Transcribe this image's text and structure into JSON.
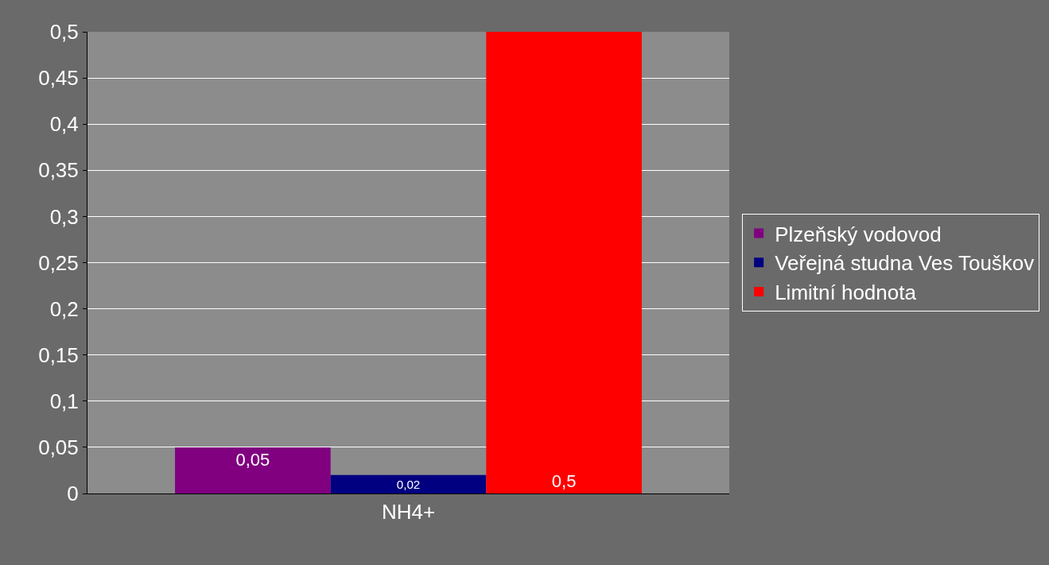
{
  "chart_data": {
    "type": "bar",
    "categories": [
      "NH4+"
    ],
    "series": [
      {
        "name": "Plzeňský vodovod",
        "color": "#800080",
        "values": [
          0.05
        ],
        "value_labels": [
          "0,05"
        ]
      },
      {
        "name": "Veřejná studna Ves Touškov",
        "color": "#000080",
        "values": [
          0.02
        ],
        "value_labels": [
          "0,02"
        ]
      },
      {
        "name": "Limitní hodnota",
        "color": "#ff0000",
        "values": [
          0.5
        ],
        "value_labels": [
          "0,5"
        ]
      }
    ],
    "ylim": [
      0,
      0.5
    ],
    "yticks": [
      {
        "value": 0,
        "label": "0"
      },
      {
        "value": 0.05,
        "label": "0,05"
      },
      {
        "value": 0.1,
        "label": "0,1"
      },
      {
        "value": 0.15,
        "label": "0,15"
      },
      {
        "value": 0.2,
        "label": "0,2"
      },
      {
        "value": 0.25,
        "label": "0,25"
      },
      {
        "value": 0.3,
        "label": "0,3"
      },
      {
        "value": 0.35,
        "label": "0,35"
      },
      {
        "value": 0.4,
        "label": "0,4"
      },
      {
        "value": 0.45,
        "label": "0,45"
      },
      {
        "value": 0.5,
        "label": "0,5"
      }
    ],
    "grid": "y",
    "legend": "right"
  }
}
